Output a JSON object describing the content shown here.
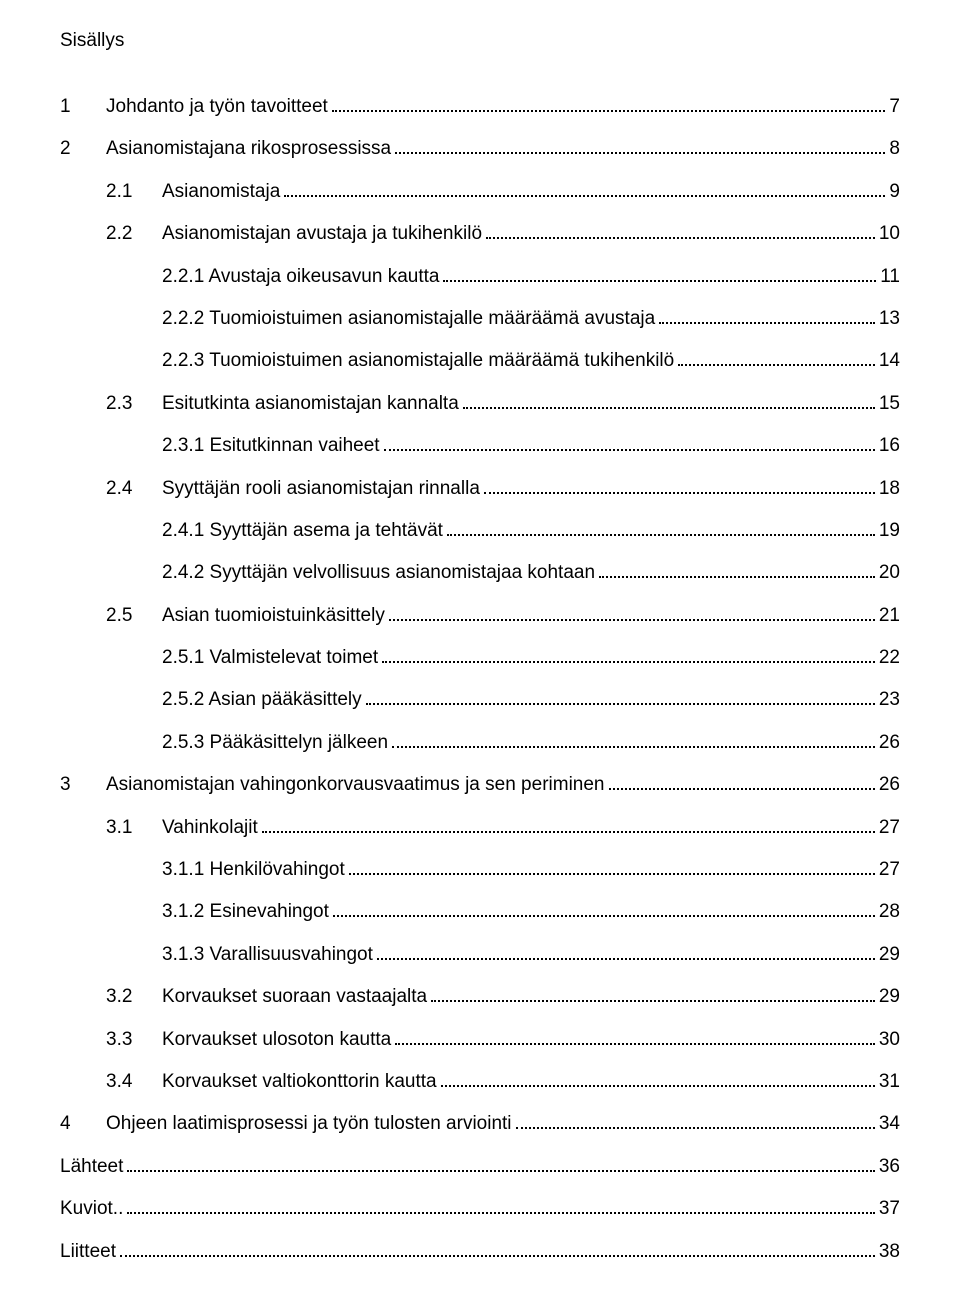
{
  "heading": "Sisällys",
  "toc": [
    {
      "level": "lvl1",
      "num": "1",
      "title": "Johdanto ja työn tavoitteet",
      "page": "7"
    },
    {
      "level": "lvl1",
      "num": "2",
      "title": "Asianomistajana rikosprosessissa",
      "page": "8"
    },
    {
      "level": "lvl2",
      "num": "2.1",
      "title": "Asianomistaja",
      "page": "9"
    },
    {
      "level": "lvl2",
      "num": "2.2",
      "title": "Asianomistajan avustaja ja tukihenkilö",
      "page": "10"
    },
    {
      "level": "lvl3",
      "num": "",
      "title": "2.2.1 Avustaja oikeusavun kautta",
      "page": "11"
    },
    {
      "level": "lvl3",
      "num": "",
      "title": "2.2.2 Tuomioistuimen asianomistajalle määräämä avustaja",
      "page": "13"
    },
    {
      "level": "lvl3",
      "num": "",
      "title": "2.2.3 Tuomioistuimen asianomistajalle määräämä tukihenkilö",
      "page": "14"
    },
    {
      "level": "lvl2",
      "num": "2.3",
      "title": "Esitutkinta asianomistajan kannalta",
      "page": "15"
    },
    {
      "level": "lvl3",
      "num": "",
      "title": "2.3.1 Esitutkinnan vaiheet",
      "page": "16"
    },
    {
      "level": "lvl2",
      "num": "2.4",
      "title": "Syyttäjän rooli asianomistajan rinnalla",
      "page": "18"
    },
    {
      "level": "lvl3",
      "num": "",
      "title": "2.4.1 Syyttäjän asema ja tehtävät",
      "page": "19"
    },
    {
      "level": "lvl3",
      "num": "",
      "title": "2.4.2 Syyttäjän velvollisuus asianomistajaa kohtaan",
      "page": "20"
    },
    {
      "level": "lvl2",
      "num": "2.5",
      "title": "Asian tuomioistuinkäsittely",
      "page": "21"
    },
    {
      "level": "lvl3",
      "num": "",
      "title": "2.5.1 Valmistelevat toimet",
      "page": "22"
    },
    {
      "level": "lvl3",
      "num": "",
      "title": "2.5.2 Asian pääkäsittely",
      "page": "23"
    },
    {
      "level": "lvl3",
      "num": "",
      "title": "2.5.3 Pääkäsittelyn jälkeen",
      "page": "26"
    },
    {
      "level": "lvl1",
      "num": "3",
      "title": "Asianomistajan vahingonkorvausvaatimus ja sen periminen",
      "page": "26"
    },
    {
      "level": "lvl2",
      "num": "3.1",
      "title": "Vahinkolajit",
      "page": "27"
    },
    {
      "level": "lvl3",
      "num": "",
      "title": "3.1.1 Henkilövahingot",
      "page": "27"
    },
    {
      "level": "lvl3",
      "num": "",
      "title": "3.1.2 Esinevahingot",
      "page": "28"
    },
    {
      "level": "lvl3",
      "num": "",
      "title": "3.1.3 Varallisuusvahingot",
      "page": "29"
    },
    {
      "level": "lvl2",
      "num": "3.2",
      "title": "Korvaukset suoraan vastaajalta",
      "page": "29"
    },
    {
      "level": "lvl2",
      "num": "3.3",
      "title": "Korvaukset ulosoton kautta",
      "page": "30"
    },
    {
      "level": "lvl2",
      "num": "3.4",
      "title": "Korvaukset valtiokonttorin kautta",
      "page": "31"
    },
    {
      "level": "lvl1",
      "num": "4",
      "title": "Ohjeen laatimisprosessi ja työn tulosten arviointi",
      "page": "34"
    },
    {
      "level": "lvl1-nonum",
      "num": "",
      "title": "Lähteet",
      "page": "36"
    },
    {
      "level": "lvl1-nonum",
      "num": "",
      "title": "Kuviot..",
      "page": "37"
    },
    {
      "level": "lvl1-nonum",
      "num": "",
      "title": "Liitteet",
      "page": "38"
    }
  ]
}
